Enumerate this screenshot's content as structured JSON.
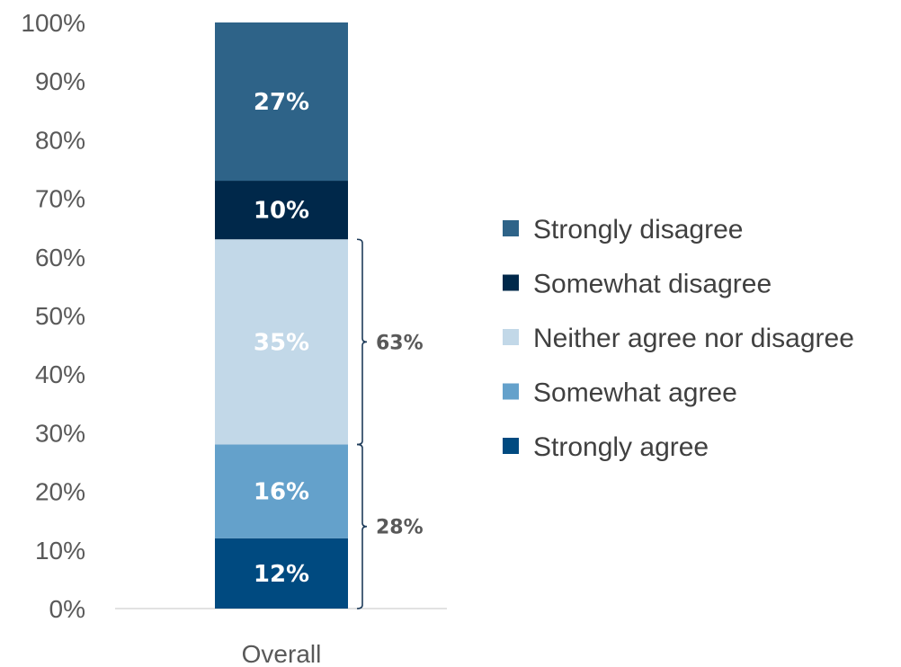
{
  "chart_data": {
    "type": "bar",
    "stacked": true,
    "ylim": [
      0,
      100
    ],
    "y_ticks": [
      "0%",
      "10%",
      "20%",
      "30%",
      "40%",
      "50%",
      "60%",
      "70%",
      "80%",
      "90%",
      "100%"
    ],
    "categories": [
      "Overall"
    ],
    "series": [
      {
        "name": "Strongly agree",
        "values": [
          12
        ],
        "label": "12%",
        "color": "#004a80"
      },
      {
        "name": "Somewhat agree",
        "values": [
          16
        ],
        "label": "16%",
        "color": "#64a1cb"
      },
      {
        "name": "Neither agree nor disagree",
        "values": [
          35
        ],
        "label": "35%",
        "color": "#c2d8e8"
      },
      {
        "name": "Somewhat disagree",
        "values": [
          10
        ],
        "label": "10%",
        "color": "#00284a"
      },
      {
        "name": "Strongly disagree",
        "values": [
          27
        ],
        "label": "27%",
        "color": "#2e6388"
      }
    ],
    "legend": {
      "position": "right",
      "order": [
        "Strongly disagree",
        "Somewhat disagree",
        "Neither agree nor disagree",
        "Somewhat agree",
        "Strongly agree"
      ]
    },
    "annotations": [
      {
        "label": "28%",
        "from": 0,
        "to": 28
      },
      {
        "label": "63%",
        "from": 28,
        "to": 63
      }
    ],
    "grid": false
  }
}
